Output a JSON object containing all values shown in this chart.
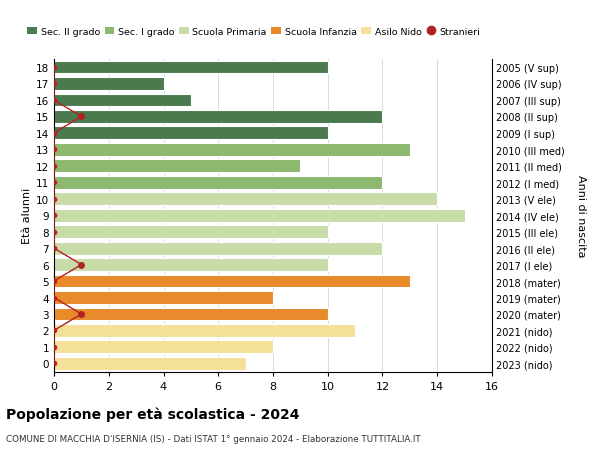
{
  "ages": [
    0,
    1,
    2,
    3,
    4,
    5,
    6,
    7,
    8,
    9,
    10,
    11,
    12,
    13,
    14,
    15,
    16,
    17,
    18
  ],
  "values": [
    7,
    8,
    11,
    10,
    8,
    13,
    10,
    12,
    10,
    15,
    14,
    12,
    9,
    13,
    10,
    12,
    5,
    4,
    10
  ],
  "years_labels": [
    "2023 (nido)",
    "2022 (nido)",
    "2021 (nido)",
    "2020 (mater)",
    "2019 (mater)",
    "2018 (mater)",
    "2017 (I ele)",
    "2016 (II ele)",
    "2015 (III ele)",
    "2014 (IV ele)",
    "2013 (V ele)",
    "2012 (I med)",
    "2011 (II med)",
    "2010 (III med)",
    "2009 (I sup)",
    "2008 (II sup)",
    "2007 (III sup)",
    "2006 (IV sup)",
    "2005 (V sup)"
  ],
  "bar_colors": [
    "#f5e09a",
    "#f5e09a",
    "#f5e09a",
    "#e8892a",
    "#e8892a",
    "#e8892a",
    "#c8dba8",
    "#c8dba8",
    "#c8dba8",
    "#c8dba8",
    "#c8dba8",
    "#8db870",
    "#8db870",
    "#8db870",
    "#4a7a4e",
    "#4a7a4e",
    "#4a7a4e",
    "#4a7a4e",
    "#4a7a4e"
  ],
  "stranieri_x": [
    0,
    0,
    0,
    1,
    0,
    0,
    1,
    0,
    0,
    0,
    0,
    0,
    0,
    0,
    0,
    1,
    0,
    0,
    0
  ],
  "legend_labels": [
    "Sec. II grado",
    "Sec. I grado",
    "Scuola Primaria",
    "Scuola Infanzia",
    "Asilo Nido",
    "Stranieri"
  ],
  "legend_colors": [
    "#4a7a4e",
    "#8db870",
    "#c8dba8",
    "#e8892a",
    "#f5e09a",
    "#b22222"
  ],
  "title": "Popolazione per età scolastica - 2024",
  "subtitle": "COMUNE DI MACCHIA D'ISERNIA (IS) - Dati ISTAT 1° gennaio 2024 - Elaborazione TUTTITALIA.IT",
  "ylabel": "Età alunni",
  "right_label": "Anni di nascita",
  "xlim": [
    0,
    16
  ],
  "ylim": [
    -0.5,
    18.5
  ],
  "xticks": [
    0,
    2,
    4,
    6,
    8,
    10,
    12,
    14,
    16
  ],
  "background_color": "#ffffff",
  "grid_color": "#cccccc",
  "bar_height": 0.78,
  "stranieri_color": "#b22222",
  "stranieri_line_color": "#b22222"
}
